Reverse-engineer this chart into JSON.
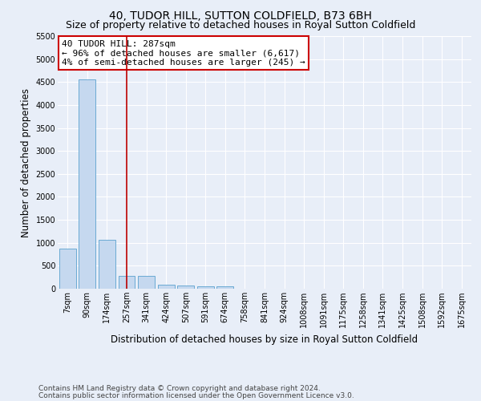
{
  "title": "40, TUDOR HILL, SUTTON COLDFIELD, B73 6BH",
  "subtitle": "Size of property relative to detached houses in Royal Sutton Coldfield",
  "xlabel": "Distribution of detached houses by size in Royal Sutton Coldfield",
  "ylabel": "Number of detached properties",
  "footer_line1": "Contains HM Land Registry data © Crown copyright and database right 2024.",
  "footer_line2": "Contains public sector information licensed under the Open Government Licence v3.0.",
  "categories": [
    "7sqm",
    "90sqm",
    "174sqm",
    "257sqm",
    "341sqm",
    "424sqm",
    "507sqm",
    "591sqm",
    "674sqm",
    "758sqm",
    "841sqm",
    "924sqm",
    "1008sqm",
    "1091sqm",
    "1175sqm",
    "1258sqm",
    "1341sqm",
    "1425sqm",
    "1508sqm",
    "1592sqm",
    "1675sqm"
  ],
  "bar_values": [
    870,
    4550,
    1060,
    285,
    280,
    90,
    75,
    50,
    50,
    0,
    0,
    0,
    0,
    0,
    0,
    0,
    0,
    0,
    0,
    0,
    0
  ],
  "bar_color": "#c5d8ef",
  "bar_edge_color": "#6aaad4",
  "background_color": "#e8eef8",
  "grid_color": "#ffffff",
  "annotation_text": "40 TUDOR HILL: 287sqm\n← 96% of detached houses are smaller (6,617)\n4% of semi-detached houses are larger (245) →",
  "annotation_box_color": "#ffffff",
  "annotation_box_edge_color": "#cc0000",
  "vline_x": 3.0,
  "vline_color": "#bb0000",
  "ylim": [
    0,
    5500
  ],
  "yticks": [
    0,
    500,
    1000,
    1500,
    2000,
    2500,
    3000,
    3500,
    4000,
    4500,
    5000,
    5500
  ],
  "title_fontsize": 10,
  "subtitle_fontsize": 9,
  "annotation_fontsize": 8,
  "label_fontsize": 8.5,
  "tick_fontsize": 7,
  "footer_fontsize": 6.5
}
